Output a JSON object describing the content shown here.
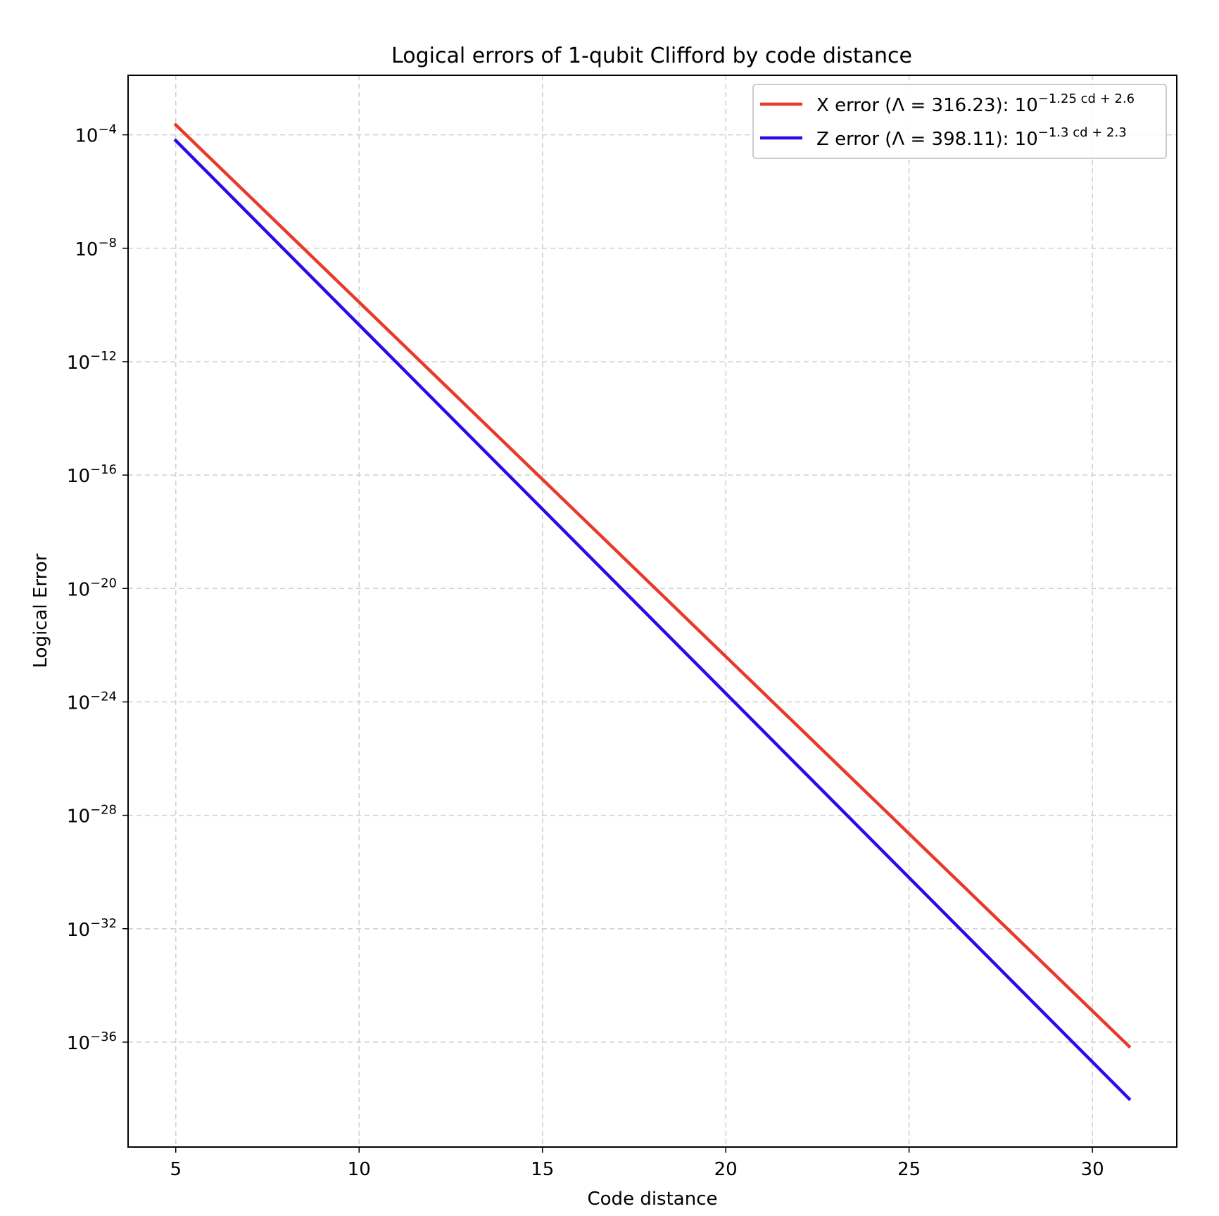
{
  "chart_data": {
    "type": "line",
    "title": "Logical errors of 1-qubit Clifford by code distance",
    "xlabel": "Code distance",
    "ylabel": "Logical Error",
    "xlim": [
      3.7,
      32.3
    ],
    "ylim_log10": [
      -39.7,
      -1.9
    ],
    "yscale": "log",
    "xticks": [
      5,
      10,
      15,
      20,
      25,
      30
    ],
    "xtick_labels": [
      "5",
      "10",
      "15",
      "20",
      "25",
      "30"
    ],
    "yticks_log10": [
      -4,
      -8,
      -12,
      -16,
      -20,
      -24,
      -28,
      -32,
      -36
    ],
    "ytick_labels": [
      {
        "base": "10",
        "exp": "−4"
      },
      {
        "base": "10",
        "exp": "−8"
      },
      {
        "base": "10",
        "exp": "−12"
      },
      {
        "base": "10",
        "exp": "−16"
      },
      {
        "base": "10",
        "exp": "−20"
      },
      {
        "base": "10",
        "exp": "−24"
      },
      {
        "base": "10",
        "exp": "−28"
      },
      {
        "base": "10",
        "exp": "−32"
      },
      {
        "base": "10",
        "exp": "−36"
      }
    ],
    "grid": true,
    "legend_position": "top-right",
    "series": [
      {
        "label_prefix": "X error (Λ = 316.23): 10",
        "label_exponent": "−1.25 cd + 2.6",
        "color": "#e8392a",
        "x": [
          5,
          31
        ],
        "y_log10": [
          -3.65,
          -36.15
        ]
      },
      {
        "label_prefix": "Z error (Λ = 398.11): 10",
        "label_exponent": "−1.3 cd + 2.3",
        "color": "#2a0ae8",
        "x": [
          5,
          31
        ],
        "y_log10": [
          -4.2,
          -38.0
        ]
      }
    ]
  }
}
